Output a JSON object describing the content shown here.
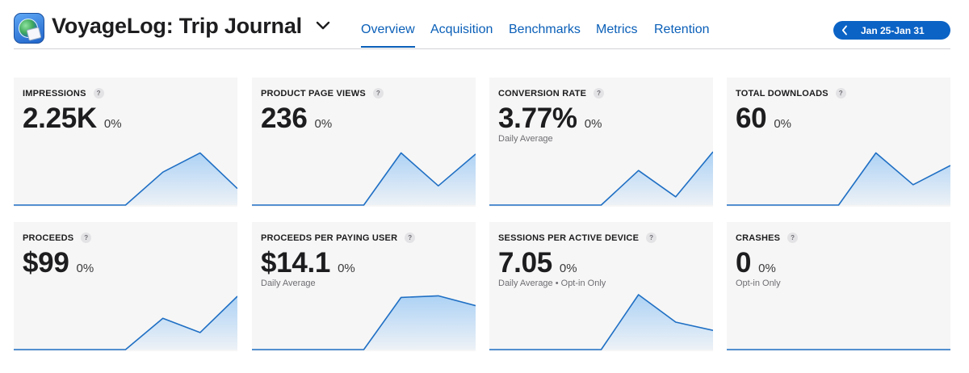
{
  "header": {
    "app_title": "VoyageLog: Trip Journal",
    "icon": "app-icon-globe-journal",
    "tabs": [
      {
        "label": "Overview",
        "active": true
      },
      {
        "label": "Acquisition",
        "active": false
      },
      {
        "label": "Benchmarks",
        "active": false
      },
      {
        "label": "Metrics",
        "active": false
      },
      {
        "label": "Retention",
        "active": false
      }
    ],
    "date_range": "Jan 25-Jan 31"
  },
  "colors": {
    "accent": "#0a5fb8",
    "line": "#1f6fc4",
    "fill_top": "#a9d0f5",
    "card_bg": "#f6f6f6"
  },
  "help_glyph": "?",
  "cards": [
    {
      "label": "IMPRESSIONS",
      "value": "2.25K",
      "change": "0%",
      "sub": "",
      "trend": [
        0,
        0,
        0,
        0,
        0.6,
        0.95,
        0.3
      ]
    },
    {
      "label": "PRODUCT PAGE VIEWS",
      "value": "236",
      "change": "0%",
      "sub": "",
      "trend": [
        0,
        0,
        0,
        0,
        0.95,
        0.35,
        0.93
      ]
    },
    {
      "label": "CONVERSION RATE",
      "value": "3.77%",
      "change": "0%",
      "sub": "Daily Average",
      "trend": [
        0,
        0,
        0,
        0,
        0.63,
        0.15,
        0.97
      ]
    },
    {
      "label": "TOTAL DOWNLOADS",
      "value": "60",
      "change": "0%",
      "sub": "",
      "trend": [
        0,
        0,
        0,
        0,
        0.95,
        0.37,
        0.72
      ]
    },
    {
      "label": "PROCEEDS",
      "value": "$99",
      "change": "0%",
      "sub": "",
      "trend": [
        0,
        0,
        0,
        0,
        0.57,
        0.31,
        0.97
      ]
    },
    {
      "label": "PROCEEDS PER PAYING USER",
      "value": "$14.1",
      "change": "0%",
      "sub": "Daily Average",
      "trend": [
        0,
        0,
        0,
        0,
        0.95,
        0.98,
        0.8
      ]
    },
    {
      "label": "SESSIONS PER ACTIVE DEVICE",
      "value": "7.05",
      "change": "0%",
      "sub": "Daily Average • Opt-in Only",
      "trend": [
        0,
        0,
        0,
        0,
        1.0,
        0.5,
        0.35
      ]
    },
    {
      "label": "CRASHES",
      "value": "0",
      "change": "0%",
      "sub": "Opt-in Only",
      "trend": [
        0,
        0,
        0,
        0,
        0,
        0,
        0
      ]
    }
  ]
}
